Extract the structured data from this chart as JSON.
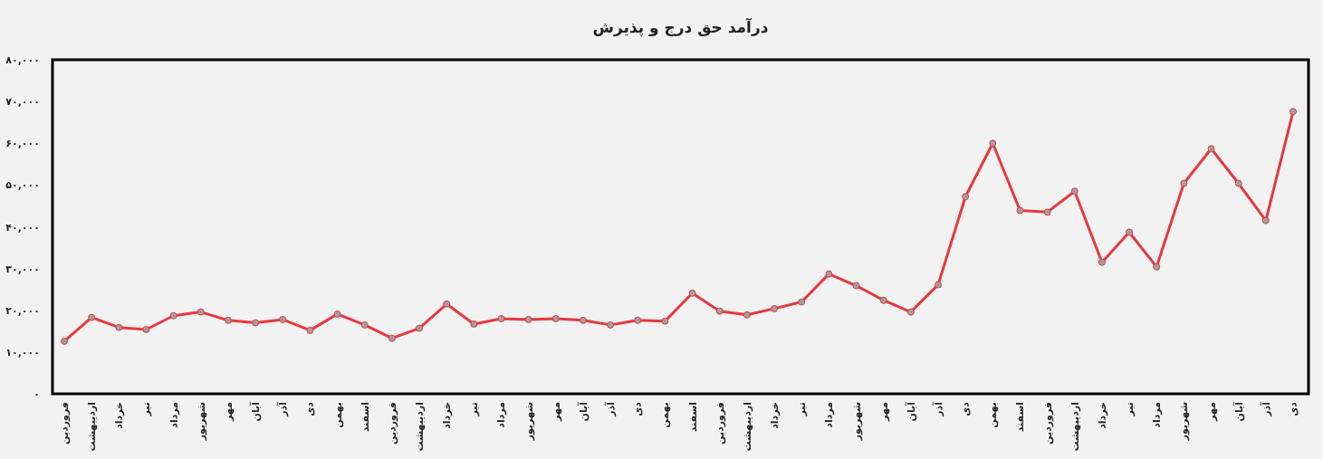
{
  "chart_data": {
    "type": "line",
    "title": "درآمد حق درج و پذیرش",
    "categories": [
      "فروردین",
      "اردیبهشت",
      "خرداد",
      "تیر",
      "مرداد",
      "شهریور",
      "مهر",
      "آبان",
      "آذر",
      "دی",
      "بهمن",
      "اسفند",
      "فروردین",
      "اردیبهشت",
      "خرداد",
      "تیر",
      "مرداد",
      "شهریور",
      "مهر",
      "آبان",
      "آذر",
      "دی",
      "بهمن",
      "اسفند",
      "فروردین",
      "اردیبهشت",
      "خرداد",
      "تیر",
      "مرداد",
      "شهریور",
      "مهر",
      "آبان",
      "آذر",
      "دی",
      "بهمن",
      "اسفند",
      "فروردین",
      "اردیبهشت",
      "خرداد",
      "تیر",
      "مرداد",
      "شهریور",
      "مهر",
      "آبان",
      "آذر",
      "دی"
    ],
    "series": [
      {
        "color": "#e8383d",
        "values": [
          12600,
          18300,
          15900,
          15400,
          18700,
          19600,
          17600,
          17000,
          17800,
          15200,
          19100,
          16500,
          13300,
          15700,
          21500,
          16700,
          18000,
          17800,
          18000,
          17600,
          16500,
          17600,
          17400,
          24100,
          19800,
          18900,
          20400,
          22000,
          28700,
          25900,
          22400,
          19600,
          26100,
          47200,
          60000,
          43900,
          43500,
          48500,
          31500,
          38700,
          30400,
          50400,
          58700,
          50400,
          41500,
          67600
        ]
      }
    ],
    "ylim": [
      0,
      80000
    ],
    "yticks": [
      {
        "value": 0,
        "label": "۰"
      },
      {
        "value": 10000,
        "label": "۱۰,۰۰۰"
      },
      {
        "value": 20000,
        "label": "۲۰,۰۰۰"
      },
      {
        "value": 30000,
        "label": "۳۰,۰۰۰"
      },
      {
        "value": 40000,
        "label": "۴۰,۰۰۰"
      },
      {
        "value": 50000,
        "label": "۵۰,۰۰۰"
      },
      {
        "value": 60000,
        "label": "۶۰,۰۰۰"
      },
      {
        "value": 70000,
        "label": "۷۰,۰۰۰"
      },
      {
        "value": 80000,
        "label": "۸۰,۰۰۰"
      }
    ],
    "grid": false,
    "marker": "circle",
    "line_style": "solid"
  }
}
